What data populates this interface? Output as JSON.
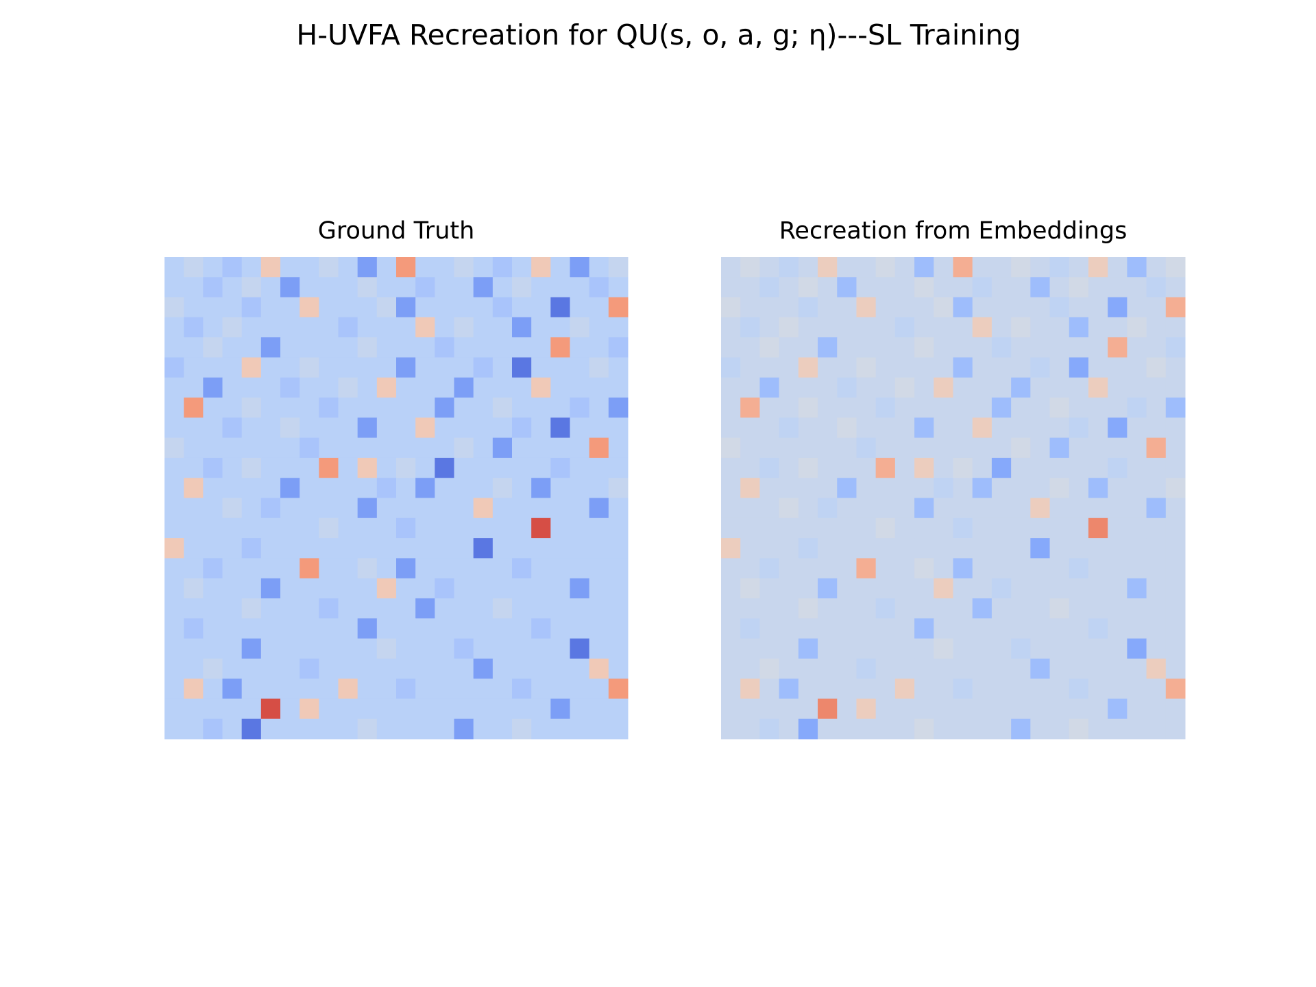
{
  "title": "H-UVFA Recreation for QU(s, o, a, g; η)---SL Training",
  "chart_data": [
    {
      "type": "heatmap",
      "title": "Ground Truth",
      "colormap": "coolwarm",
      "zlim": [
        0,
        1
      ],
      "values": [
        [
          0.38,
          0.42,
          0.38,
          0.33,
          0.38,
          0.6,
          0.38,
          0.38,
          0.42,
          0.38,
          0.2,
          0.38,
          0.75,
          0.38,
          0.38,
          0.42,
          0.38,
          0.33,
          0.38,
          0.6,
          0.38,
          0.2,
          0.38,
          0.42
        ],
        [
          0.38,
          0.38,
          0.33,
          0.38,
          0.42,
          0.38,
          0.2,
          0.38,
          0.38,
          0.38,
          0.42,
          0.38,
          0.38,
          0.33,
          0.38,
          0.38,
          0.2,
          0.38,
          0.42,
          0.38,
          0.38,
          0.38,
          0.33,
          0.38
        ],
        [
          0.42,
          0.38,
          0.38,
          0.38,
          0.33,
          0.38,
          0.38,
          0.6,
          0.38,
          0.38,
          0.38,
          0.42,
          0.2,
          0.38,
          0.38,
          0.38,
          0.38,
          0.33,
          0.38,
          0.38,
          0.1,
          0.38,
          0.38,
          0.75
        ],
        [
          0.38,
          0.33,
          0.38,
          0.42,
          0.38,
          0.38,
          0.38,
          0.38,
          0.38,
          0.33,
          0.38,
          0.38,
          0.38,
          0.6,
          0.38,
          0.42,
          0.38,
          0.38,
          0.2,
          0.38,
          0.38,
          0.42,
          0.38,
          0.38
        ],
        [
          0.38,
          0.38,
          0.42,
          0.38,
          0.38,
          0.2,
          0.38,
          0.38,
          0.38,
          0.38,
          0.42,
          0.38,
          0.38,
          0.38,
          0.33,
          0.38,
          0.38,
          0.38,
          0.38,
          0.38,
          0.75,
          0.38,
          0.38,
          0.33
        ],
        [
          0.33,
          0.38,
          0.38,
          0.38,
          0.6,
          0.38,
          0.38,
          0.42,
          0.38,
          0.38,
          0.38,
          0.38,
          0.2,
          0.38,
          0.38,
          0.38,
          0.33,
          0.38,
          0.1,
          0.38,
          0.38,
          0.38,
          0.42,
          0.38
        ],
        [
          0.38,
          0.38,
          0.2,
          0.38,
          0.38,
          0.38,
          0.33,
          0.38,
          0.38,
          0.42,
          0.38,
          0.6,
          0.38,
          0.38,
          0.38,
          0.2,
          0.38,
          0.38,
          0.38,
          0.6,
          0.38,
          0.38,
          0.38,
          0.38
        ],
        [
          0.38,
          0.75,
          0.38,
          0.38,
          0.42,
          0.38,
          0.38,
          0.38,
          0.33,
          0.38,
          0.38,
          0.38,
          0.38,
          0.38,
          0.2,
          0.38,
          0.38,
          0.42,
          0.38,
          0.38,
          0.38,
          0.33,
          0.38,
          0.2
        ],
        [
          0.38,
          0.38,
          0.38,
          0.33,
          0.38,
          0.38,
          0.42,
          0.38,
          0.38,
          0.38,
          0.2,
          0.38,
          0.38,
          0.6,
          0.38,
          0.38,
          0.38,
          0.38,
          0.33,
          0.38,
          0.1,
          0.38,
          0.38,
          0.38
        ],
        [
          0.42,
          0.38,
          0.38,
          0.38,
          0.38,
          0.38,
          0.38,
          0.33,
          0.38,
          0.38,
          0.38,
          0.38,
          0.38,
          0.38,
          0.38,
          0.42,
          0.38,
          0.2,
          0.38,
          0.38,
          0.38,
          0.38,
          0.75,
          0.38
        ],
        [
          0.38,
          0.38,
          0.33,
          0.38,
          0.42,
          0.38,
          0.38,
          0.38,
          0.75,
          0.38,
          0.6,
          0.38,
          0.42,
          0.38,
          0.1,
          0.38,
          0.38,
          0.38,
          0.38,
          0.38,
          0.33,
          0.38,
          0.38,
          0.38
        ],
        [
          0.38,
          0.6,
          0.38,
          0.38,
          0.38,
          0.38,
          0.2,
          0.38,
          0.38,
          0.38,
          0.38,
          0.33,
          0.38,
          0.2,
          0.38,
          0.38,
          0.38,
          0.42,
          0.38,
          0.2,
          0.38,
          0.38,
          0.38,
          0.42
        ],
        [
          0.38,
          0.38,
          0.38,
          0.42,
          0.38,
          0.33,
          0.38,
          0.38,
          0.38,
          0.38,
          0.2,
          0.38,
          0.38,
          0.38,
          0.38,
          0.38,
          0.6,
          0.38,
          0.38,
          0.38,
          0.38,
          0.38,
          0.2,
          0.38
        ],
        [
          0.38,
          0.38,
          0.38,
          0.38,
          0.38,
          0.38,
          0.38,
          0.38,
          0.42,
          0.38,
          0.38,
          0.38,
          0.33,
          0.38,
          0.38,
          0.38,
          0.38,
          0.38,
          0.38,
          0.9,
          0.38,
          0.38,
          0.38,
          0.38
        ],
        [
          0.6,
          0.38,
          0.38,
          0.38,
          0.33,
          0.38,
          0.38,
          0.38,
          0.38,
          0.38,
          0.38,
          0.38,
          0.38,
          0.38,
          0.38,
          0.38,
          0.1,
          0.38,
          0.38,
          0.38,
          0.38,
          0.38,
          0.38,
          0.38
        ],
        [
          0.38,
          0.38,
          0.33,
          0.38,
          0.38,
          0.38,
          0.38,
          0.75,
          0.38,
          0.38,
          0.42,
          0.38,
          0.2,
          0.38,
          0.38,
          0.38,
          0.38,
          0.38,
          0.33,
          0.38,
          0.38,
          0.38,
          0.38,
          0.38
        ],
        [
          0.38,
          0.42,
          0.38,
          0.38,
          0.38,
          0.2,
          0.38,
          0.38,
          0.38,
          0.38,
          0.38,
          0.6,
          0.38,
          0.38,
          0.33,
          0.38,
          0.38,
          0.38,
          0.38,
          0.38,
          0.38,
          0.2,
          0.38,
          0.38
        ],
        [
          0.38,
          0.38,
          0.38,
          0.38,
          0.42,
          0.38,
          0.38,
          0.38,
          0.33,
          0.38,
          0.38,
          0.38,
          0.38,
          0.2,
          0.38,
          0.38,
          0.38,
          0.42,
          0.38,
          0.38,
          0.38,
          0.38,
          0.38,
          0.38
        ],
        [
          0.38,
          0.33,
          0.38,
          0.38,
          0.38,
          0.38,
          0.38,
          0.38,
          0.38,
          0.38,
          0.2,
          0.38,
          0.38,
          0.38,
          0.38,
          0.38,
          0.38,
          0.38,
          0.38,
          0.33,
          0.38,
          0.38,
          0.38,
          0.38
        ],
        [
          0.38,
          0.38,
          0.38,
          0.38,
          0.2,
          0.38,
          0.38,
          0.38,
          0.38,
          0.38,
          0.38,
          0.42,
          0.38,
          0.38,
          0.38,
          0.33,
          0.38,
          0.38,
          0.38,
          0.38,
          0.38,
          0.1,
          0.38,
          0.38
        ],
        [
          0.38,
          0.38,
          0.42,
          0.38,
          0.38,
          0.38,
          0.38,
          0.33,
          0.38,
          0.38,
          0.38,
          0.38,
          0.38,
          0.38,
          0.38,
          0.38,
          0.2,
          0.38,
          0.38,
          0.38,
          0.38,
          0.38,
          0.6,
          0.38
        ],
        [
          0.38,
          0.6,
          0.38,
          0.2,
          0.38,
          0.38,
          0.38,
          0.38,
          0.38,
          0.6,
          0.38,
          0.38,
          0.33,
          0.38,
          0.38,
          0.38,
          0.38,
          0.38,
          0.33,
          0.38,
          0.38,
          0.38,
          0.38,
          0.75
        ],
        [
          0.38,
          0.38,
          0.38,
          0.38,
          0.38,
          0.9,
          0.38,
          0.6,
          0.38,
          0.38,
          0.38,
          0.38,
          0.38,
          0.38,
          0.38,
          0.38,
          0.38,
          0.38,
          0.38,
          0.38,
          0.2,
          0.38,
          0.38,
          0.38
        ],
        [
          0.38,
          0.38,
          0.33,
          0.38,
          0.1,
          0.38,
          0.38,
          0.38,
          0.38,
          0.38,
          0.42,
          0.38,
          0.38,
          0.38,
          0.38,
          0.2,
          0.38,
          0.38,
          0.42,
          0.38,
          0.38,
          0.38,
          0.38,
          0.38
        ]
      ]
    },
    {
      "type": "heatmap",
      "title": "Recreation from Embeddings",
      "colormap": "coolwarm",
      "zlim": [
        0,
        1
      ],
      "values": [
        [
          0.43,
          0.46,
          0.43,
          0.4,
          0.43,
          0.58,
          0.43,
          0.43,
          0.46,
          0.43,
          0.3,
          0.43,
          0.69,
          0.43,
          0.43,
          0.46,
          0.43,
          0.4,
          0.43,
          0.58,
          0.43,
          0.3,
          0.43,
          0.46
        ],
        [
          0.43,
          0.43,
          0.4,
          0.43,
          0.46,
          0.43,
          0.3,
          0.43,
          0.43,
          0.43,
          0.46,
          0.43,
          0.43,
          0.4,
          0.43,
          0.43,
          0.3,
          0.43,
          0.46,
          0.43,
          0.43,
          0.43,
          0.4,
          0.43
        ],
        [
          0.46,
          0.43,
          0.43,
          0.43,
          0.4,
          0.43,
          0.43,
          0.58,
          0.43,
          0.43,
          0.43,
          0.46,
          0.3,
          0.43,
          0.43,
          0.43,
          0.43,
          0.4,
          0.43,
          0.43,
          0.23,
          0.43,
          0.43,
          0.69
        ],
        [
          0.43,
          0.4,
          0.43,
          0.46,
          0.43,
          0.43,
          0.43,
          0.43,
          0.43,
          0.4,
          0.43,
          0.43,
          0.43,
          0.58,
          0.43,
          0.46,
          0.43,
          0.43,
          0.3,
          0.43,
          0.43,
          0.46,
          0.43,
          0.43
        ],
        [
          0.43,
          0.43,
          0.46,
          0.43,
          0.43,
          0.3,
          0.43,
          0.43,
          0.43,
          0.43,
          0.46,
          0.43,
          0.43,
          0.43,
          0.4,
          0.43,
          0.43,
          0.43,
          0.43,
          0.43,
          0.69,
          0.43,
          0.43,
          0.4
        ],
        [
          0.4,
          0.43,
          0.43,
          0.43,
          0.58,
          0.43,
          0.43,
          0.46,
          0.43,
          0.43,
          0.43,
          0.43,
          0.3,
          0.43,
          0.43,
          0.43,
          0.4,
          0.43,
          0.23,
          0.43,
          0.43,
          0.43,
          0.46,
          0.43
        ],
        [
          0.43,
          0.43,
          0.3,
          0.43,
          0.43,
          0.43,
          0.4,
          0.43,
          0.43,
          0.46,
          0.43,
          0.58,
          0.43,
          0.43,
          0.43,
          0.3,
          0.43,
          0.43,
          0.43,
          0.58,
          0.43,
          0.43,
          0.43,
          0.43
        ],
        [
          0.43,
          0.69,
          0.43,
          0.43,
          0.46,
          0.43,
          0.43,
          0.43,
          0.4,
          0.43,
          0.43,
          0.43,
          0.43,
          0.43,
          0.3,
          0.43,
          0.43,
          0.46,
          0.43,
          0.43,
          0.43,
          0.4,
          0.43,
          0.3
        ],
        [
          0.43,
          0.43,
          0.43,
          0.4,
          0.43,
          0.43,
          0.46,
          0.43,
          0.43,
          0.43,
          0.3,
          0.43,
          0.43,
          0.58,
          0.43,
          0.43,
          0.43,
          0.43,
          0.4,
          0.43,
          0.23,
          0.43,
          0.43,
          0.43
        ],
        [
          0.46,
          0.43,
          0.43,
          0.43,
          0.43,
          0.43,
          0.43,
          0.4,
          0.43,
          0.43,
          0.43,
          0.43,
          0.43,
          0.43,
          0.43,
          0.46,
          0.43,
          0.3,
          0.43,
          0.43,
          0.43,
          0.43,
          0.69,
          0.43
        ],
        [
          0.43,
          0.43,
          0.4,
          0.43,
          0.46,
          0.43,
          0.43,
          0.43,
          0.69,
          0.43,
          0.58,
          0.43,
          0.46,
          0.43,
          0.23,
          0.43,
          0.43,
          0.43,
          0.43,
          0.43,
          0.4,
          0.43,
          0.43,
          0.43
        ],
        [
          0.43,
          0.58,
          0.43,
          0.43,
          0.43,
          0.43,
          0.3,
          0.43,
          0.43,
          0.43,
          0.43,
          0.4,
          0.43,
          0.3,
          0.43,
          0.43,
          0.43,
          0.46,
          0.43,
          0.3,
          0.43,
          0.43,
          0.43,
          0.46
        ],
        [
          0.43,
          0.43,
          0.43,
          0.46,
          0.43,
          0.4,
          0.43,
          0.43,
          0.43,
          0.43,
          0.3,
          0.43,
          0.43,
          0.43,
          0.43,
          0.43,
          0.58,
          0.43,
          0.43,
          0.43,
          0.43,
          0.43,
          0.3,
          0.43
        ],
        [
          0.43,
          0.43,
          0.43,
          0.43,
          0.43,
          0.43,
          0.43,
          0.43,
          0.46,
          0.43,
          0.43,
          0.43,
          0.4,
          0.43,
          0.43,
          0.43,
          0.43,
          0.43,
          0.43,
          0.79,
          0.43,
          0.43,
          0.43,
          0.43
        ],
        [
          0.58,
          0.43,
          0.43,
          0.43,
          0.4,
          0.43,
          0.43,
          0.43,
          0.43,
          0.43,
          0.43,
          0.43,
          0.43,
          0.43,
          0.43,
          0.43,
          0.23,
          0.43,
          0.43,
          0.43,
          0.43,
          0.43,
          0.43,
          0.43
        ],
        [
          0.43,
          0.43,
          0.4,
          0.43,
          0.43,
          0.43,
          0.43,
          0.69,
          0.43,
          0.43,
          0.46,
          0.43,
          0.3,
          0.43,
          0.43,
          0.43,
          0.43,
          0.43,
          0.4,
          0.43,
          0.43,
          0.43,
          0.43,
          0.43
        ],
        [
          0.43,
          0.46,
          0.43,
          0.43,
          0.43,
          0.3,
          0.43,
          0.43,
          0.43,
          0.43,
          0.43,
          0.58,
          0.43,
          0.43,
          0.4,
          0.43,
          0.43,
          0.43,
          0.43,
          0.43,
          0.43,
          0.3,
          0.43,
          0.43
        ],
        [
          0.43,
          0.43,
          0.43,
          0.43,
          0.46,
          0.43,
          0.43,
          0.43,
          0.4,
          0.43,
          0.43,
          0.43,
          0.43,
          0.3,
          0.43,
          0.43,
          0.43,
          0.46,
          0.43,
          0.43,
          0.43,
          0.43,
          0.43,
          0.43
        ],
        [
          0.43,
          0.4,
          0.43,
          0.43,
          0.43,
          0.43,
          0.43,
          0.43,
          0.43,
          0.43,
          0.3,
          0.43,
          0.43,
          0.43,
          0.43,
          0.43,
          0.43,
          0.43,
          0.43,
          0.4,
          0.43,
          0.43,
          0.43,
          0.43
        ],
        [
          0.43,
          0.43,
          0.43,
          0.43,
          0.3,
          0.43,
          0.43,
          0.43,
          0.43,
          0.43,
          0.43,
          0.46,
          0.43,
          0.43,
          0.43,
          0.4,
          0.43,
          0.43,
          0.43,
          0.43,
          0.43,
          0.23,
          0.43,
          0.43
        ],
        [
          0.43,
          0.43,
          0.46,
          0.43,
          0.43,
          0.43,
          0.43,
          0.4,
          0.43,
          0.43,
          0.43,
          0.43,
          0.43,
          0.43,
          0.43,
          0.43,
          0.3,
          0.43,
          0.43,
          0.43,
          0.43,
          0.43,
          0.58,
          0.43
        ],
        [
          0.43,
          0.58,
          0.43,
          0.3,
          0.43,
          0.43,
          0.43,
          0.43,
          0.43,
          0.58,
          0.43,
          0.43,
          0.4,
          0.43,
          0.43,
          0.43,
          0.43,
          0.43,
          0.4,
          0.43,
          0.43,
          0.43,
          0.43,
          0.69
        ],
        [
          0.43,
          0.43,
          0.43,
          0.43,
          0.43,
          0.79,
          0.43,
          0.58,
          0.43,
          0.43,
          0.43,
          0.43,
          0.43,
          0.43,
          0.43,
          0.43,
          0.43,
          0.43,
          0.43,
          0.43,
          0.3,
          0.43,
          0.43,
          0.43
        ],
        [
          0.43,
          0.43,
          0.4,
          0.43,
          0.23,
          0.43,
          0.43,
          0.43,
          0.43,
          0.43,
          0.46,
          0.43,
          0.43,
          0.43,
          0.43,
          0.3,
          0.43,
          0.43,
          0.46,
          0.43,
          0.43,
          0.43,
          0.43,
          0.43
        ]
      ]
    }
  ]
}
